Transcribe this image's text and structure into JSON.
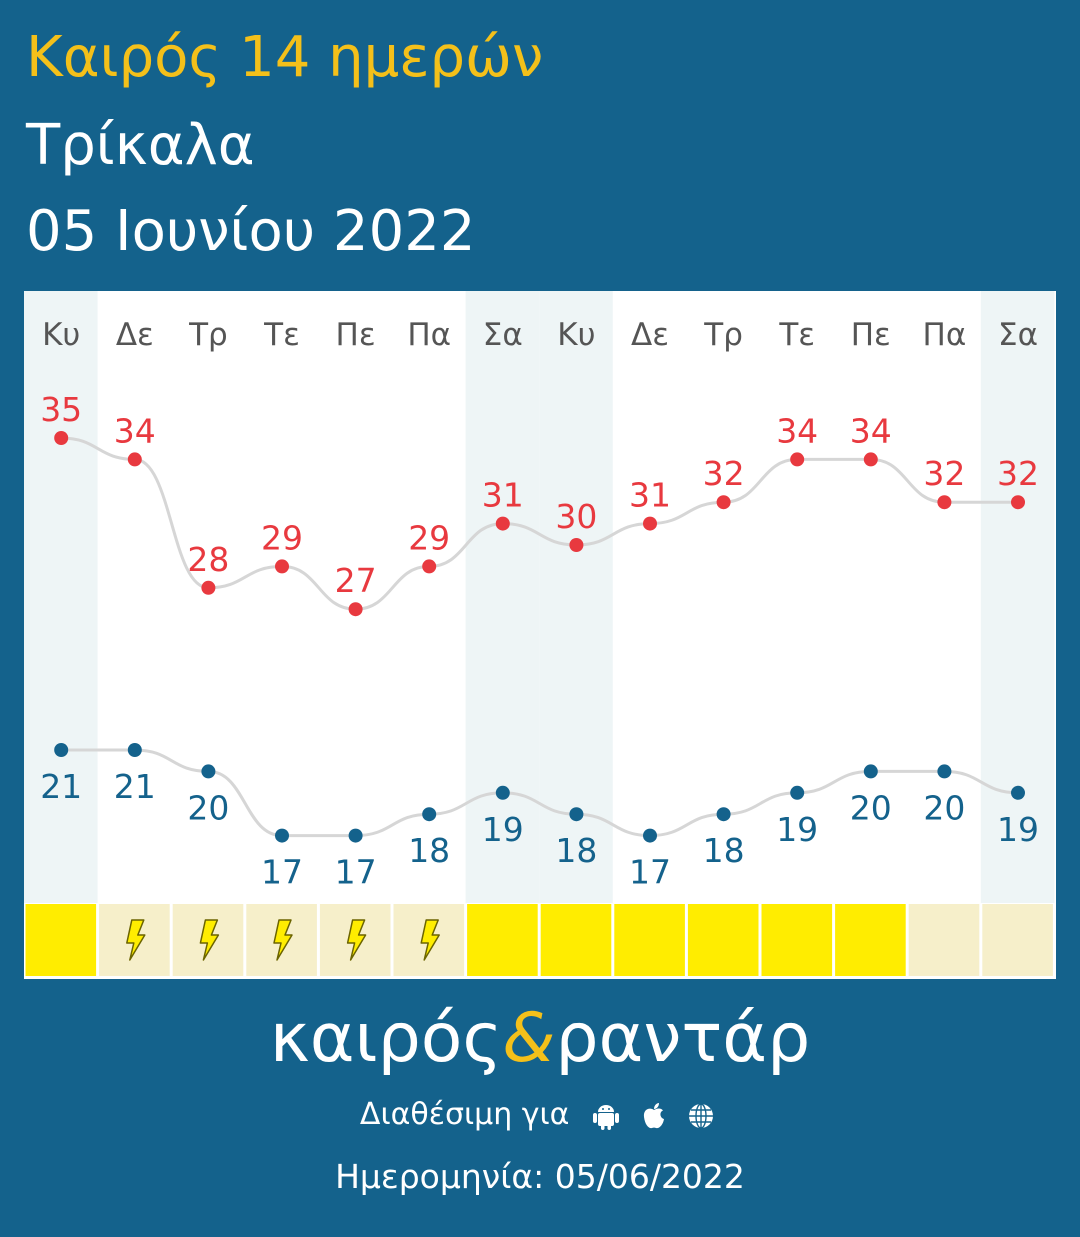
{
  "header": {
    "title": "Καιρός 14 ημερών",
    "city": "Τρίκαλα",
    "date": "05 Ιουνίου 2022"
  },
  "chart_data": {
    "type": "line",
    "categories": [
      "Κυ",
      "Δε",
      "Τρ",
      "Τε",
      "Πε",
      "Πα",
      "Σα",
      "Κυ",
      "Δε",
      "Τρ",
      "Τε",
      "Πε",
      "Πα",
      "Σα"
    ],
    "weekend": [
      true,
      false,
      false,
      false,
      false,
      false,
      true,
      true,
      false,
      false,
      false,
      false,
      false,
      true
    ],
    "series": [
      {
        "values": [
          35,
          34,
          28,
          29,
          27,
          29,
          31,
          30,
          31,
          32,
          34,
          34,
          32,
          32
        ],
        "color": "#e8393f"
      },
      {
        "values": [
          21,
          21,
          20,
          17,
          17,
          18,
          19,
          18,
          17,
          18,
          19,
          20,
          20,
          19
        ],
        "color": "#14628c"
      }
    ],
    "weather": [
      "sun",
      "thunder",
      "thunder",
      "thunder",
      "thunder",
      "thunder",
      "sun",
      "sun",
      "sun",
      "sun",
      "sun",
      "sun",
      "pale",
      "pale"
    ],
    "grid": false
  },
  "colors": {
    "background": "#14628c",
    "accent": "#f4c01a",
    "high": "#e8393f",
    "low": "#14628c",
    "weekend_band": "#eef5f6",
    "sun": "#ffed00",
    "pale": "#f6efca"
  },
  "brand": {
    "left": "καιρός",
    "amp": "&",
    "right": "ραντάρ"
  },
  "availability": {
    "label": "Διαθέσιμη για",
    "icons": [
      "android-icon",
      "apple-icon",
      "globe-icon"
    ]
  },
  "footer": {
    "date": "Ημερομηνία: 05/06/2022"
  }
}
